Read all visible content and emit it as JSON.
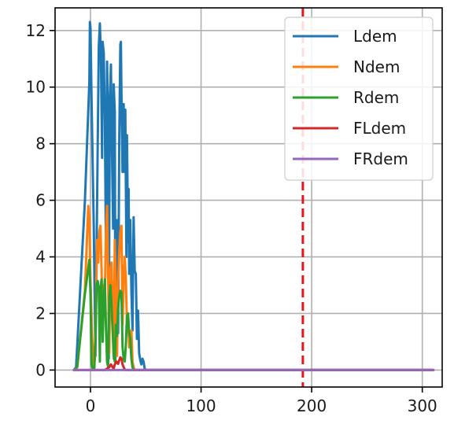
{
  "chart_data": {
    "type": "line",
    "title": "",
    "xlabel": "",
    "ylabel": "",
    "xlim": [
      -32,
      318
    ],
    "ylim": [
      -0.6,
      12.8
    ],
    "xticks": [
      0,
      100,
      200,
      300
    ],
    "yticks": [
      0,
      2,
      4,
      6,
      8,
      10,
      12
    ],
    "xtick_labels": [
      "0",
      "100",
      "200",
      "300"
    ],
    "ytick_labels": [
      "0",
      "2",
      "4",
      "6",
      "8",
      "10",
      "12"
    ],
    "grid": true,
    "legend_position": "top-right",
    "reference_line": {
      "orientation": "vertical",
      "x": 192,
      "style": "dashed",
      "color": "#e8141a"
    },
    "series": [
      {
        "name": "Ldem",
        "color": "#1f77b4",
        "points": [
          [
            -15,
            0
          ],
          [
            -13,
            0.1
          ],
          [
            -5,
            6
          ],
          [
            -1,
            10.2
          ],
          [
            -0.5,
            12.3
          ],
          [
            0,
            12.1
          ],
          [
            1,
            9.5
          ],
          [
            3,
            5
          ],
          [
            4.5,
            0.5
          ],
          [
            6,
            6
          ],
          [
            7.5,
            11.4
          ],
          [
            8.5,
            12.25
          ],
          [
            9.5,
            11
          ],
          [
            10.5,
            7.5
          ],
          [
            11,
            11.6
          ],
          [
            12,
            11.2
          ],
          [
            13,
            8.8
          ],
          [
            14,
            4.3
          ],
          [
            15,
            10.9
          ],
          [
            16,
            8.5
          ],
          [
            16.5,
            0.4
          ],
          [
            17.5,
            9.5
          ],
          [
            18.5,
            10.8
          ],
          [
            19,
            9
          ],
          [
            19.5,
            7.6
          ],
          [
            20.5,
            5
          ],
          [
            21,
            10.1
          ],
          [
            22,
            9.1
          ],
          [
            22.5,
            0.3
          ],
          [
            23.5,
            3.5
          ],
          [
            24,
            5.3
          ],
          [
            25,
            1.3
          ],
          [
            26,
            8
          ],
          [
            27,
            11.5
          ],
          [
            27.5,
            11.6
          ],
          [
            28,
            9.8
          ],
          [
            29,
            7
          ],
          [
            30,
            9.4
          ],
          [
            31,
            7
          ],
          [
            31.5,
            9.2
          ],
          [
            32.5,
            4
          ],
          [
            33,
            8.3
          ],
          [
            34,
            4.5
          ],
          [
            34.5,
            6.4
          ],
          [
            35,
            3.4
          ],
          [
            36,
            5.3
          ],
          [
            37,
            2.8
          ],
          [
            38,
            1.4
          ],
          [
            39,
            5.4
          ],
          [
            40,
            3.5
          ],
          [
            41,
            3.4
          ],
          [
            42,
            1.1
          ],
          [
            43,
            2.1
          ],
          [
            44,
            0.6
          ],
          [
            45,
            0.35
          ],
          [
            46,
            0.2
          ],
          [
            47,
            0.4
          ],
          [
            48,
            0.3
          ],
          [
            49,
            0.05
          ],
          [
            50,
            0
          ],
          [
            310,
            0
          ]
        ]
      },
      {
        "name": "Ndem",
        "color": "#ff7f0e",
        "points": [
          [
            -15,
            0
          ],
          [
            -12,
            0.1
          ],
          [
            -5,
            2.8
          ],
          [
            -2,
            5.8
          ],
          [
            -1,
            5.4
          ],
          [
            0,
            3.2
          ],
          [
            1.5,
            1.2
          ],
          [
            3,
            0.2
          ],
          [
            4,
            0.4
          ],
          [
            5,
            2.4
          ],
          [
            6,
            4.6
          ],
          [
            7,
            3.8
          ],
          [
            8,
            4.9
          ],
          [
            9,
            5.1
          ],
          [
            10,
            3.6
          ],
          [
            11,
            1.7
          ],
          [
            12,
            3
          ],
          [
            13,
            2.6
          ],
          [
            14,
            4.9
          ],
          [
            15,
            5.8
          ],
          [
            16,
            3.2
          ],
          [
            17,
            0.6
          ],
          [
            18,
            3.6
          ],
          [
            19,
            3.8
          ],
          [
            20,
            2.2
          ],
          [
            21,
            0.4
          ],
          [
            22,
            4.6
          ],
          [
            23,
            2.5
          ],
          [
            24,
            0.5
          ],
          [
            25,
            3.1
          ],
          [
            26,
            4.2
          ],
          [
            27,
            4.9
          ],
          [
            28,
            5.1
          ],
          [
            29,
            1.6
          ],
          [
            30,
            3.2
          ],
          [
            31,
            4
          ],
          [
            32,
            3.2
          ],
          [
            33,
            1.6
          ],
          [
            34,
            1.9
          ],
          [
            35,
            0.8
          ],
          [
            36,
            1.2
          ],
          [
            37,
            1.4
          ],
          [
            38,
            0.3
          ],
          [
            39,
            0.1
          ],
          [
            40,
            0
          ],
          [
            310,
            0
          ]
        ]
      },
      {
        "name": "Rdem",
        "color": "#2ca02c",
        "points": [
          [
            -15,
            0
          ],
          [
            -12,
            0.1
          ],
          [
            -5,
            2.7
          ],
          [
            -1,
            3.9
          ],
          [
            0,
            2.7
          ],
          [
            1,
            0.2
          ],
          [
            2,
            0.05
          ],
          [
            3.5,
            0.05
          ],
          [
            4.5,
            1.2
          ],
          [
            5.5,
            3
          ],
          [
            6.5,
            3.15
          ],
          [
            7.5,
            2.9
          ],
          [
            8.5,
            0.3
          ],
          [
            9,
            2.8
          ],
          [
            10,
            3.2
          ],
          [
            11,
            1
          ],
          [
            12,
            2.4
          ],
          [
            13,
            3.2
          ],
          [
            14,
            1.5
          ],
          [
            15,
            0.3
          ],
          [
            16,
            0.1
          ],
          [
            17,
            2.6
          ],
          [
            18,
            3
          ],
          [
            19,
            2.3
          ],
          [
            20,
            1.4
          ],
          [
            21,
            0.5
          ],
          [
            22,
            0.3
          ],
          [
            23,
            1.6
          ],
          [
            24,
            1.2
          ],
          [
            25,
            2.2
          ],
          [
            26,
            2.6
          ],
          [
            27,
            2.8
          ],
          [
            28,
            2.75
          ],
          [
            29,
            0.8
          ],
          [
            30,
            0.4
          ],
          [
            31,
            0.3
          ],
          [
            32,
            0.9
          ],
          [
            33,
            1.9
          ],
          [
            34,
            2
          ],
          [
            35,
            1.3
          ],
          [
            36,
            1.1
          ],
          [
            37,
            0.4
          ],
          [
            38,
            0.1
          ],
          [
            39,
            0
          ],
          [
            310,
            0
          ]
        ]
      },
      {
        "name": "FLdem",
        "color": "#d62728",
        "points": [
          [
            -15,
            0
          ],
          [
            13,
            0
          ],
          [
            15,
            0.05
          ],
          [
            17,
            0.1
          ],
          [
            18.5,
            0.2
          ],
          [
            20,
            0.1
          ],
          [
            21,
            0.05
          ],
          [
            22,
            0.2
          ],
          [
            23.5,
            0.3
          ],
          [
            25,
            0.22
          ],
          [
            26,
            0.35
          ],
          [
            27,
            0.45
          ],
          [
            28,
            0.4
          ],
          [
            29,
            0.2
          ],
          [
            30,
            0.1
          ],
          [
            31,
            0.02
          ],
          [
            32,
            0
          ],
          [
            310,
            0
          ]
        ]
      },
      {
        "name": "FRdem",
        "color": "#9467bd",
        "points": [
          [
            -15,
            0
          ],
          [
            310,
            0
          ]
        ]
      }
    ]
  }
}
